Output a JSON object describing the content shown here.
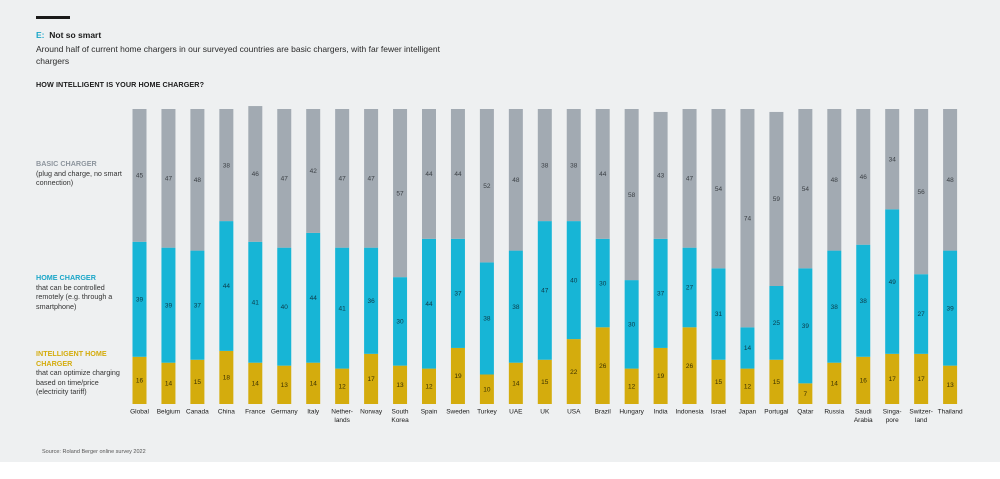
{
  "header": {
    "letter": "E:",
    "title": "Not so smart",
    "subtitle": "Around half of current home chargers in our surveyed countries are basic chargers, with far fewer intelligent chargers",
    "question": "HOW INTELLIGENT IS YOUR HOME CHARGER?"
  },
  "legend": {
    "basic": {
      "title": "BASIC CHARGER",
      "desc": "(plug and charge, no smart connection)"
    },
    "home": {
      "title": "HOME CHARGER",
      "desc": "that can be controlled remotely (e.g. through a smartphone)"
    },
    "intelligent": {
      "title": "INTELLIGENT HOME CHARGER",
      "desc": "that can optimize charging based on time/price (electricity tariff)"
    }
  },
  "source": "Source: Roland Berger online survey 2022",
  "colors": {
    "basic": "#a2aab2",
    "home": "#17b5d6",
    "intelligent": "#d4ac0d",
    "background": "#eef0f1"
  },
  "chart_data": {
    "type": "bar",
    "stacked": true,
    "normalized": true,
    "categories": [
      [
        "Global"
      ],
      [
        "Belgium"
      ],
      [
        "Canada"
      ],
      [
        "China"
      ],
      [
        "France"
      ],
      [
        "Germany"
      ],
      [
        "Italy"
      ],
      [
        "Nether-",
        "lands"
      ],
      [
        "Norway"
      ],
      [
        "South",
        "Korea"
      ],
      [
        "Spain"
      ],
      [
        "Sweden"
      ],
      [
        "Turkey"
      ],
      [
        "UAE"
      ],
      [
        "UK"
      ],
      [
        "USA"
      ],
      [
        "Brazil"
      ],
      [
        "Hungary"
      ],
      [
        "India"
      ],
      [
        "Indonesia"
      ],
      [
        "Israel"
      ],
      [
        "Japan"
      ],
      [
        "Portugal"
      ],
      [
        "Qatar"
      ],
      [
        "Russia"
      ],
      [
        "Saudi",
        "Arabia"
      ],
      [
        "Singa-",
        "pore"
      ],
      [
        "Switzer-",
        "land"
      ],
      [
        "Thailand"
      ]
    ],
    "series": [
      {
        "name": "INTELLIGENT HOME CHARGER",
        "key": "intelligent",
        "values": [
          16,
          14,
          15,
          18,
          14,
          13,
          14,
          12,
          17,
          13,
          12,
          19,
          10,
          14,
          15,
          22,
          26,
          12,
          19,
          26,
          15,
          12,
          15,
          7,
          14,
          16,
          17,
          17,
          13
        ]
      },
      {
        "name": "HOME CHARGER",
        "key": "home",
        "values": [
          39,
          39,
          37,
          44,
          41,
          40,
          44,
          41,
          36,
          30,
          44,
          37,
          38,
          38,
          47,
          40,
          30,
          30,
          37,
          27,
          31,
          14,
          25,
          39,
          38,
          38,
          49,
          27,
          39
        ]
      },
      {
        "name": "BASIC CHARGER",
        "key": "basic",
        "values": [
          45,
          47,
          48,
          38,
          46,
          47,
          42,
          47,
          47,
          57,
          44,
          44,
          52,
          48,
          38,
          38,
          44,
          58,
          43,
          47,
          54,
          74,
          59,
          54,
          48,
          46,
          34,
          56,
          48
        ]
      }
    ],
    "ylim": [
      0,
      100
    ]
  }
}
